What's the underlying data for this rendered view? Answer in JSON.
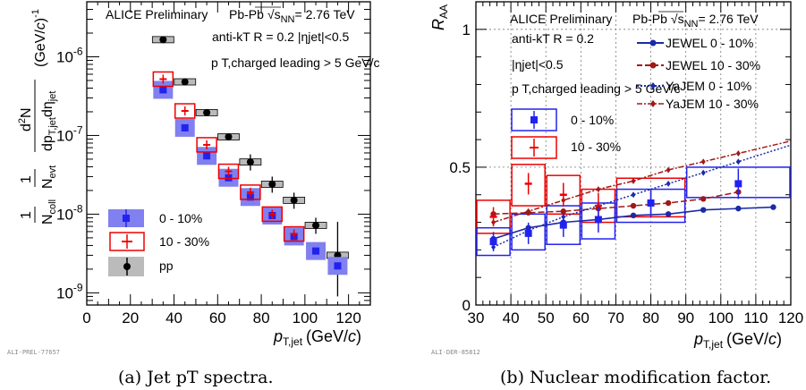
{
  "figure": {
    "panel_a": {
      "caption": "(a) Jet pT spectra.",
      "ref": "ALI-PREL-77657",
      "label": "ALICE Preliminary",
      "system_prefix": "Pb-Pb",
      "system_energy": "= 2.76 TeV",
      "jet_def": "anti-kT R = 0.2 |ηjet|<0.5",
      "cut": "p T,charged leading > 5 GeV/c"
    },
    "panel_b": {
      "caption": "(b) Nuclear modification factor.",
      "ref": "ALI-DER-85812",
      "label": "ALICE Preliminary",
      "system_prefix": "Pb-Pb",
      "system_energy": "= 2.76 TeV",
      "jet_def": "anti-kT R = 0.2",
      "eta_cut": "|ηjet|<0.5",
      "cut": "p T,charged leading > 5 GeV/c"
    }
  },
  "chart_data": [
    {
      "type": "scatter",
      "xlabel": "pT,jet (GeV/c)",
      "ylabel": "1/Ncoll 1/Nevt d2N/dpT,jet dηjet (GeV/c)-1",
      "xlim": [
        0,
        130
      ],
      "ylim": [
        7e-10,
        5e-06
      ],
      "yscale": "log",
      "xticks": [
        0,
        20,
        40,
        60,
        80,
        100,
        120
      ],
      "yticks": [
        1e-09,
        1e-08,
        1e-07,
        1e-06
      ],
      "ytick_labels": [
        "10-9",
        "10-8",
        "10-7",
        "10-6"
      ],
      "legend_position": "bottom-left",
      "series": [
        {
          "name": "0 - 10%",
          "color": "#2222ee",
          "box_color": "#8080f0",
          "marker": "square",
          "x": [
            35,
            45,
            55,
            65,
            75,
            85,
            95,
            105,
            115
          ],
          "y": [
            3.8e-07,
            1.25e-07,
            5.5e-08,
            2.9e-08,
            1.65e-08,
            9.6e-09,
            5.2e-09,
            3.4e-09,
            2.2e-09
          ]
        },
        {
          "name": "10 - 30%",
          "color": "#ee0000",
          "box_color": "#ee0000",
          "marker": "cross",
          "x": [
            35,
            45,
            55,
            65,
            75,
            85,
            95,
            105,
            115
          ],
          "y": [
            5.2e-07,
            2.05e-07,
            7.6e-08,
            3.5e-08,
            1.9e-08,
            1e-08,
            5.6e-09,
            null,
            null
          ]
        },
        {
          "name": "pp",
          "color": "#000000",
          "box_color": "#bbbbbb",
          "marker": "circle",
          "x": [
            35,
            45,
            55,
            65,
            75,
            85,
            95,
            105,
            115
          ],
          "y": [
            1.65e-06,
            4.8e-07,
            1.95e-07,
            9.6e-08,
            4.6e-08,
            2.4e-08,
            1.5e-08,
            7.2e-09,
            3e-09
          ]
        }
      ]
    },
    {
      "type": "scatter",
      "xlabel": "pT,jet (GeV/c)",
      "ylabel": "RAA",
      "xlim": [
        30,
        120
      ],
      "ylim": [
        0,
        1.1
      ],
      "xticks": [
        30,
        40,
        50,
        60,
        70,
        80,
        90,
        100,
        110,
        120
      ],
      "yticks": [
        0,
        0.5,
        1
      ],
      "ytick_labels": [
        "0",
        "0.5",
        "1"
      ],
      "grid": true,
      "legend_position": "top-right",
      "series": [
        {
          "name": "0 - 10%",
          "color": "#2222ee",
          "marker": "square",
          "x": [
            35,
            45,
            55,
            65,
            80,
            105
          ],
          "y": [
            0.23,
            0.26,
            0.29,
            0.31,
            0.37,
            0.44
          ],
          "sys_x": [
            [
              30,
              40
            ],
            [
              40,
              50
            ],
            [
              50,
              60
            ],
            [
              60,
              70
            ],
            [
              70,
              90
            ],
            [
              90,
              120
            ]
          ],
          "sys_y": [
            [
              0.18,
              0.28
            ],
            [
              0.2,
              0.33
            ],
            [
              0.22,
              0.36
            ],
            [
              0.24,
              0.37
            ],
            [
              0.3,
              0.42
            ],
            [
              0.39,
              0.5
            ]
          ]
        },
        {
          "name": "10 - 30%",
          "color": "#ee0000",
          "marker": "cross",
          "x": [
            35,
            45,
            55,
            65,
            80
          ],
          "y": [
            0.32,
            0.44,
            0.4,
            0.36,
            0.37
          ],
          "sys_x": [
            [
              30,
              40
            ],
            [
              40,
              50
            ],
            [
              50,
              60
            ],
            [
              60,
              70
            ],
            [
              70,
              90
            ]
          ],
          "sys_y": [
            [
              0.26,
              0.38
            ],
            [
              0.36,
              0.51
            ],
            [
              0.33,
              0.47
            ],
            [
              0.3,
              0.42
            ],
            [
              0.32,
              0.46
            ]
          ]
        },
        {
          "name": "JEWEL 0 - 10%",
          "color": "#1a2aa8",
          "style": "solid",
          "marker": "dot",
          "x": [
            35,
            45,
            55,
            65,
            75,
            85,
            95,
            105,
            115
          ],
          "y": [
            0.24,
            0.28,
            0.3,
            0.31,
            0.325,
            0.33,
            0.345,
            0.35,
            0.355
          ]
        },
        {
          "name": "JEWEL 10 - 30%",
          "color": "#a01818",
          "style": "dashed",
          "marker": "dot",
          "x": [
            35,
            45,
            55,
            65,
            75,
            85,
            95,
            105
          ],
          "y": [
            0.33,
            0.335,
            0.34,
            0.35,
            0.36,
            0.37,
            0.385,
            0.41
          ]
        },
        {
          "name": "YaJEM 0 - 10%",
          "color": "#1a2aa8",
          "style": "dotted",
          "marker": "diamond",
          "x": [
            35,
            45,
            55,
            65,
            75,
            85,
            95,
            105
          ],
          "y": [
            0.21,
            0.27,
            0.32,
            0.36,
            0.4,
            0.44,
            0.48,
            0.52
          ]
        },
        {
          "name": "YaJEM 10 - 30%",
          "color": "#a01818",
          "style": "dashdot",
          "marker": "diamond",
          "x": [
            35,
            45,
            55,
            65,
            75,
            85,
            95,
            105
          ],
          "y": [
            0.3,
            0.34,
            0.38,
            0.42,
            0.45,
            0.49,
            0.52,
            0.55
          ]
        }
      ]
    }
  ]
}
